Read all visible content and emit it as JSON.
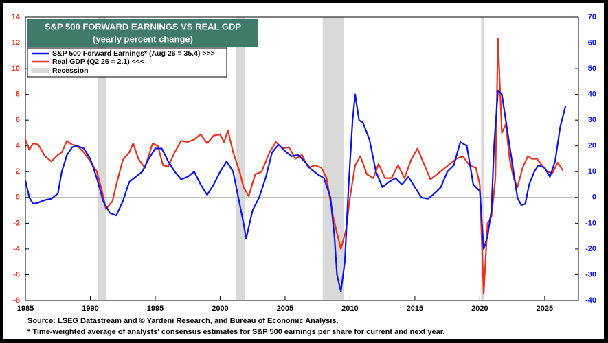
{
  "chart_data": {
    "type": "line",
    "title": "S&P 500 FORWARD EARNINGS VS REAL GDP",
    "subtitle": "(yearly percent change)",
    "source": "Source: LSEG Datastream and © Yardeni Research, and  Bureau of Economic Analysis.",
    "footnote": "* Time-weighted average of analysts' consensus estimates for S&P 500 earnings per share for current and next year.",
    "xlim": [
      1985,
      2027.6
    ],
    "xticks": [
      1985,
      1990,
      1995,
      2000,
      2005,
      2010,
      2015,
      2020,
      2025
    ],
    "ylim": [
      -8,
      14
    ],
    "yticks": [
      -8,
      -6,
      -4,
      -2,
      0,
      2,
      4,
      6,
      8,
      10,
      12,
      14
    ],
    "y2lim": [
      -40,
      70
    ],
    "y2ticks": [
      -40,
      -30,
      -20,
      -10,
      0,
      10,
      20,
      30,
      40,
      50,
      60,
      70
    ],
    "zero_line": true,
    "recessions": {
      "name": "Recession",
      "color": "#d9d9d9",
      "spans": [
        [
          1990.6,
          1991.2
        ],
        [
          2001.2,
          2001.9
        ],
        [
          2007.9,
          2009.5
        ],
        [
          2020.1,
          2020.3
        ]
      ]
    },
    "series": [
      {
        "name": "S&P 500 Forward Earnings* (Aug 26 = 35.4) >>>",
        "color": "#0a14e6",
        "axis": "y2",
        "x": [
          1985.0,
          1985.3,
          1985.6,
          1986.0,
          1986.5,
          1987.0,
          1987.5,
          1987.8,
          1988.2,
          1988.6,
          1989.0,
          1989.5,
          1990.0,
          1990.5,
          1991.0,
          1991.5,
          1992.0,
          1992.5,
          1993.0,
          1993.5,
          1994.0,
          1994.5,
          1995.0,
          1995.5,
          1996.0,
          1996.5,
          1997.0,
          1997.5,
          1998.0,
          1998.5,
          1999.0,
          1999.5,
          2000.0,
          2000.5,
          2001.0,
          2001.5,
          2001.8,
          2002.0,
          2002.5,
          2003.0,
          2003.5,
          2004.0,
          2004.5,
          2005.0,
          2005.5,
          2006.0,
          2006.5,
          2007.0,
          2007.5,
          2008.0,
          2008.5,
          2008.8,
          2009.0,
          2009.3,
          2009.6,
          2009.9,
          2010.2,
          2010.4,
          2010.7,
          2011.0,
          2011.5,
          2012.0,
          2012.5,
          2013.0,
          2013.5,
          2014.0,
          2014.5,
          2015.0,
          2015.5,
          2016.0,
          2016.5,
          2017.0,
          2017.5,
          2018.0,
          2018.5,
          2019.0,
          2019.5,
          2020.0,
          2020.3,
          2020.6,
          2020.9,
          2021.1,
          2021.4,
          2021.7,
          2022.0,
          2022.3,
          2022.6,
          2022.9,
          2023.2,
          2023.5,
          2023.8,
          2024.2,
          2024.5,
          2025.0,
          2025.4,
          2025.8,
          2026.2,
          2026.6
        ],
        "values": [
          6.5,
          0,
          -2.5,
          -2,
          -1,
          -0.5,
          1.5,
          10,
          16.5,
          19.5,
          20,
          19,
          15,
          7.5,
          -1.5,
          -6,
          -7,
          -1.5,
          6,
          8,
          10,
          15,
          19,
          19,
          14,
          10,
          7,
          8,
          10,
          5,
          1,
          5,
          10,
          14,
          10,
          -2.5,
          -10,
          -16,
          -5,
          0,
          7.5,
          17.5,
          20.5,
          18,
          16,
          16.5,
          14,
          11,
          9,
          7.5,
          0,
          -15,
          -30,
          -36.5,
          -25,
          5,
          30,
          40,
          30,
          29,
          22.5,
          10,
          4,
          6,
          7.5,
          5,
          8,
          4,
          0,
          -0.5,
          1.5,
          4,
          10,
          12.5,
          21.5,
          20,
          5,
          2.5,
          -20,
          -15,
          -5,
          20,
          41.5,
          40,
          30,
          20,
          10,
          0,
          -3,
          -2.5,
          5,
          10,
          12.5,
          11.5,
          8,
          14,
          27.5,
          35.4
        ]
      },
      {
        "name": "Real GDP  (Q2 26 = 2.1) <<<",
        "color": "#e8321e",
        "axis": "y",
        "x": [
          1985.0,
          1985.3,
          1985.6,
          1986.0,
          1986.5,
          1987.0,
          1987.5,
          1987.8,
          1988.2,
          1988.6,
          1989.0,
          1989.5,
          1990.0,
          1990.5,
          1990.9,
          1991.2,
          1991.7,
          1992.0,
          1992.5,
          1993.0,
          1993.3,
          1993.7,
          1994.2,
          1994.8,
          1995.2,
          1995.6,
          1996.0,
          1996.5,
          1997.0,
          1997.5,
          1998.0,
          1998.5,
          1999.0,
          1999.5,
          2000.0,
          2000.3,
          2000.6,
          2001.0,
          2001.5,
          2001.8,
          2002.2,
          2002.7,
          2003.2,
          2003.8,
          2004.3,
          2004.8,
          2005.3,
          2005.8,
          2006.3,
          2006.8,
          2007.3,
          2007.8,
          2008.2,
          2008.7,
          2009.3,
          2009.7,
          2010.0,
          2010.4,
          2010.8,
          2011.3,
          2011.8,
          2012.2,
          2012.7,
          2013.2,
          2013.7,
          2014.2,
          2014.7,
          2015.2,
          2015.7,
          2016.2,
          2016.7,
          2017.2,
          2017.7,
          2018.2,
          2018.7,
          2019.2,
          2019.7,
          2020.0,
          2020.3,
          2020.6,
          2020.9,
          2021.2,
          2021.4,
          2021.7,
          2022.0,
          2022.3,
          2022.6,
          2022.9,
          2023.3,
          2023.7,
          2024.0,
          2024.4,
          2024.8,
          2025.2,
          2025.6,
          2026.0,
          2026.4
        ],
        "values": [
          4.5,
          3.7,
          4.2,
          4.1,
          3.2,
          2.8,
          3.3,
          3.5,
          4.4,
          4.1,
          4.0,
          3.5,
          2.8,
          2.0,
          0.5,
          -0.9,
          -0.3,
          1.0,
          2.9,
          3.5,
          4.2,
          3.0,
          2.3,
          4.2,
          4.0,
          2.5,
          2.4,
          3.5,
          4.4,
          4.3,
          4.5,
          4.9,
          4.2,
          4.8,
          4.9,
          4.3,
          5.2,
          3.5,
          2.0,
          0.8,
          0.1,
          1.8,
          2.0,
          3.5,
          4.3,
          3.8,
          3.9,
          3.0,
          3.3,
          2.3,
          2.5,
          2.3,
          1.5,
          -1.5,
          -4.0,
          -2.5,
          0.0,
          2.5,
          3.2,
          1.8,
          1.5,
          2.6,
          1.5,
          1.5,
          2.5,
          1.5,
          2.9,
          3.8,
          2.6,
          1.4,
          1.8,
          2.2,
          2.6,
          3.0,
          3.2,
          2.5,
          2.3,
          1.0,
          -7.5,
          -2.0,
          -1.5,
          1.5,
          12.3,
          5.0,
          5.7,
          3.0,
          1.5,
          0.8,
          2.3,
          3.2,
          3.0,
          3.0,
          2.5,
          2.0,
          1.9,
          2.7,
          2.1
        ]
      }
    ]
  }
}
